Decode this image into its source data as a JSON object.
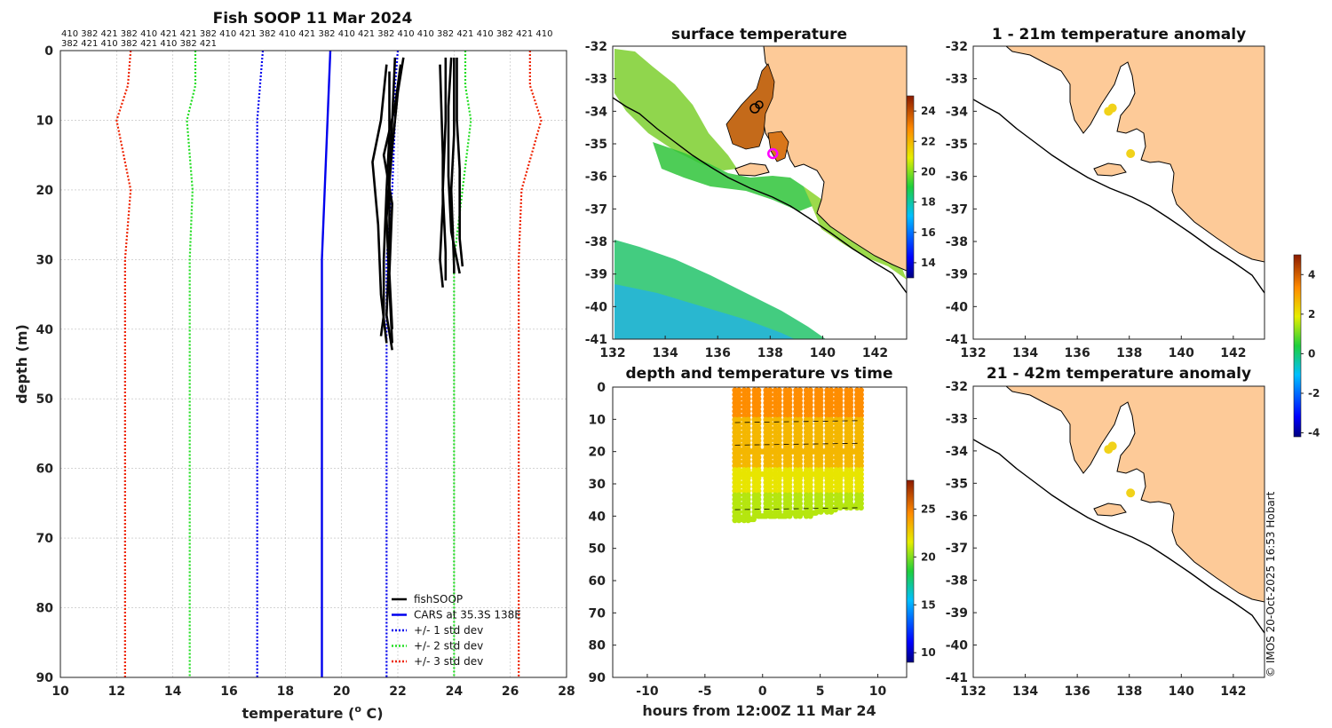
{
  "figure": {
    "title": "Fish SOOP 11 Mar 2024",
    "footer": "© IMOS 20-Oct-2025 16:53 Hobart"
  },
  "chart_data": [
    {
      "id": "profile",
      "type": "line",
      "title": "Fish SOOP 11 Mar 2024",
      "header_line1": "410 382 421 382 410 421 421 382 410 421 382 410 421 382 410 421 382 410 410 382 421 410 382 421 410",
      "header_line2": "382 421 410 382 421 410 382 421",
      "xlabel": "temperature (",
      "xlabel_sup": "o",
      "xlabel_tail": " C)",
      "ylabel": "depth (m)",
      "xlim": [
        10,
        28
      ],
      "ylim": [
        0,
        90
      ],
      "xticks": [
        10,
        12,
        14,
        16,
        18,
        20,
        22,
        24,
        26,
        28
      ],
      "yticks": [
        0,
        10,
        20,
        30,
        40,
        50,
        60,
        70,
        80,
        90
      ],
      "legend": [
        {
          "label": "fishSOOP",
          "color": "#000000",
          "style": "solid"
        },
        {
          "label": "CARS at 35.3S 138E",
          "color": "#0000ee",
          "style": "solid"
        },
        {
          "label": "+/- 1 std dev",
          "color": "#0000ee",
          "style": "dotted"
        },
        {
          "label": "+/- 2 std dev",
          "color": "#22dd22",
          "style": "dotted"
        },
        {
          "label": "+/- 3 std dev",
          "color": "#ee2200",
          "style": "dotted"
        }
      ],
      "depths": [
        0,
        5,
        10,
        20,
        30,
        90
      ],
      "series": [
        {
          "name": "CARS mean",
          "color": "#0000ee",
          "style": "solid",
          "temps": [
            19.6,
            19.55,
            19.5,
            19.4,
            19.3,
            19.3
          ]
        },
        {
          "name": "-1 std",
          "color": "#0000ee",
          "style": "dotted",
          "temps": [
            17.2,
            17.1,
            17.0,
            17.0,
            17.0,
            17.0
          ]
        },
        {
          "name": "+1 std",
          "color": "#0000ee",
          "style": "dotted",
          "temps": [
            22.0,
            21.9,
            21.9,
            21.8,
            21.6,
            21.6
          ]
        },
        {
          "name": "-2 std",
          "color": "#22dd22",
          "style": "dotted",
          "temps": [
            14.8,
            14.8,
            14.5,
            14.7,
            14.6,
            14.6
          ]
        },
        {
          "name": "+2 std",
          "color": "#22dd22",
          "style": "dotted",
          "temps": [
            24.4,
            24.4,
            24.6,
            24.3,
            24.0,
            24.0
          ]
        },
        {
          "name": "-3 std",
          "color": "#ee2200",
          "style": "dotted",
          "temps": [
            12.5,
            12.4,
            12.0,
            12.5,
            12.3,
            12.3
          ]
        },
        {
          "name": "+3 std",
          "color": "#ee2200",
          "style": "dotted",
          "temps": [
            26.7,
            26.7,
            27.1,
            26.4,
            26.3,
            26.3
          ]
        }
      ],
      "fishsoop_casts": [
        {
          "d": [
            2,
            10,
            16,
            25,
            35,
            42
          ],
          "t": [
            21.6,
            21.4,
            21.1,
            21.3,
            21.4,
            21.6
          ]
        },
        {
          "d": [
            1,
            10,
            18,
            28,
            38,
            43
          ],
          "t": [
            21.9,
            21.8,
            21.7,
            21.7,
            21.6,
            21.8
          ]
        },
        {
          "d": [
            2,
            8,
            15,
            22,
            32,
            40
          ],
          "t": [
            22.1,
            21.9,
            21.5,
            21.8,
            21.7,
            21.8
          ]
        },
        {
          "d": [
            3,
            12,
            20,
            30,
            38,
            41
          ],
          "t": [
            21.7,
            21.7,
            21.6,
            21.5,
            21.5,
            21.4
          ]
        },
        {
          "d": [
            1,
            6,
            14,
            24,
            34,
            42
          ],
          "t": [
            22.2,
            22.0,
            21.8,
            21.6,
            21.7,
            21.8
          ]
        },
        {
          "d": [
            1,
            10,
            20,
            29,
            33
          ],
          "t": [
            23.7,
            23.7,
            23.6,
            23.7,
            23.7
          ]
        },
        {
          "d": [
            1,
            12,
            20,
            31,
            32
          ],
          "t": [
            24.0,
            24.0,
            23.9,
            24.0,
            24.0
          ]
        },
        {
          "d": [
            1,
            10,
            17,
            27,
            31
          ],
          "t": [
            24.1,
            24.1,
            24.2,
            24.2,
            24.3
          ]
        },
        {
          "d": [
            2,
            15,
            22,
            30,
            34
          ],
          "t": [
            23.5,
            23.6,
            23.6,
            23.5,
            23.6
          ]
        },
        {
          "d": [
            1,
            8,
            18,
            26,
            32
          ],
          "t": [
            23.9,
            23.8,
            23.8,
            23.9,
            24.2
          ]
        }
      ]
    },
    {
      "id": "sst_map",
      "type": "heatmap",
      "title": "surface temperature",
      "xticks": [
        132,
        134,
        136,
        138,
        140,
        142
      ],
      "yticks": [
        -32,
        -33,
        -34,
        -35,
        -36,
        -37,
        -38,
        -39,
        -40,
        -41
      ],
      "xlim": [
        132,
        143.2
      ],
      "ylim": [
        -41,
        -32
      ],
      "colorbar": {
        "ticks": [
          14,
          16,
          18,
          20,
          22,
          24
        ],
        "range": [
          13,
          25
        ]
      },
      "marker": {
        "lon": 138.1,
        "lat": -35.3,
        "color": "#ff00ff"
      }
    },
    {
      "id": "depth_time",
      "type": "scatter",
      "title": "depth and temperature vs time",
      "xlabel": "hours from 12:00Z 11 Mar 24",
      "xticks": [
        -10,
        -5,
        0,
        5,
        10
      ],
      "yticks": [
        0,
        10,
        20,
        30,
        40,
        50,
        60,
        70,
        80,
        90
      ],
      "xlim": [
        -13,
        12.5
      ],
      "ylim": [
        0,
        90
      ],
      "colorbar": {
        "ticks": [
          10,
          15,
          20,
          25
        ],
        "range": [
          9,
          28
        ]
      },
      "dives": [
        {
          "t": -2.4,
          "max": 42
        },
        {
          "t": -1.6,
          "max": 42
        },
        {
          "t": -0.7,
          "max": 41
        },
        {
          "t": 0.3,
          "max": 41
        },
        {
          "t": 1.1,
          "max": 41
        },
        {
          "t": 2.0,
          "max": 40
        },
        {
          "t": 2.9,
          "max": 40
        },
        {
          "t": 3.8,
          "max": 40
        },
        {
          "t": 4.7,
          "max": 39
        },
        {
          "t": 5.6,
          "max": 39
        },
        {
          "t": 6.4,
          "max": 38
        },
        {
          "t": 7.3,
          "max": 38
        },
        {
          "t": 8.2,
          "max": 38
        }
      ]
    },
    {
      "id": "anom_1_21",
      "type": "heatmap",
      "title": "1 - 21m temperature anomaly",
      "xticks": [
        132,
        134,
        136,
        138,
        140,
        142
      ],
      "yticks": [
        -32,
        -33,
        -34,
        -35,
        -36,
        -37,
        -38,
        -39,
        -40,
        -41
      ],
      "xlim": [
        132,
        143.2
      ],
      "ylim": [
        -41,
        -32
      ],
      "points": [
        {
          "lon": 137.2,
          "lat": -34.0
        },
        {
          "lon": 137.35,
          "lat": -33.9
        },
        {
          "lon": 138.05,
          "lat": -35.3
        }
      ]
    },
    {
      "id": "anom_21_42",
      "type": "heatmap",
      "title": "21 - 42m temperature anomaly",
      "xticks": [
        132,
        134,
        136,
        138,
        140,
        142
      ],
      "yticks": [
        -32,
        -33,
        -34,
        -35,
        -36,
        -37,
        -38,
        -39,
        -40,
        -41
      ],
      "xlim": [
        132,
        143.2
      ],
      "ylim": [
        -41,
        -32
      ],
      "points": [
        {
          "lon": 137.2,
          "lat": -33.95
        },
        {
          "lon": 137.35,
          "lat": -33.85
        },
        {
          "lon": 138.05,
          "lat": -35.3
        }
      ],
      "colorbar": {
        "ticks": [
          -4,
          -2,
          0,
          2,
          4
        ],
        "range": [
          -4.2,
          5
        ]
      }
    }
  ]
}
